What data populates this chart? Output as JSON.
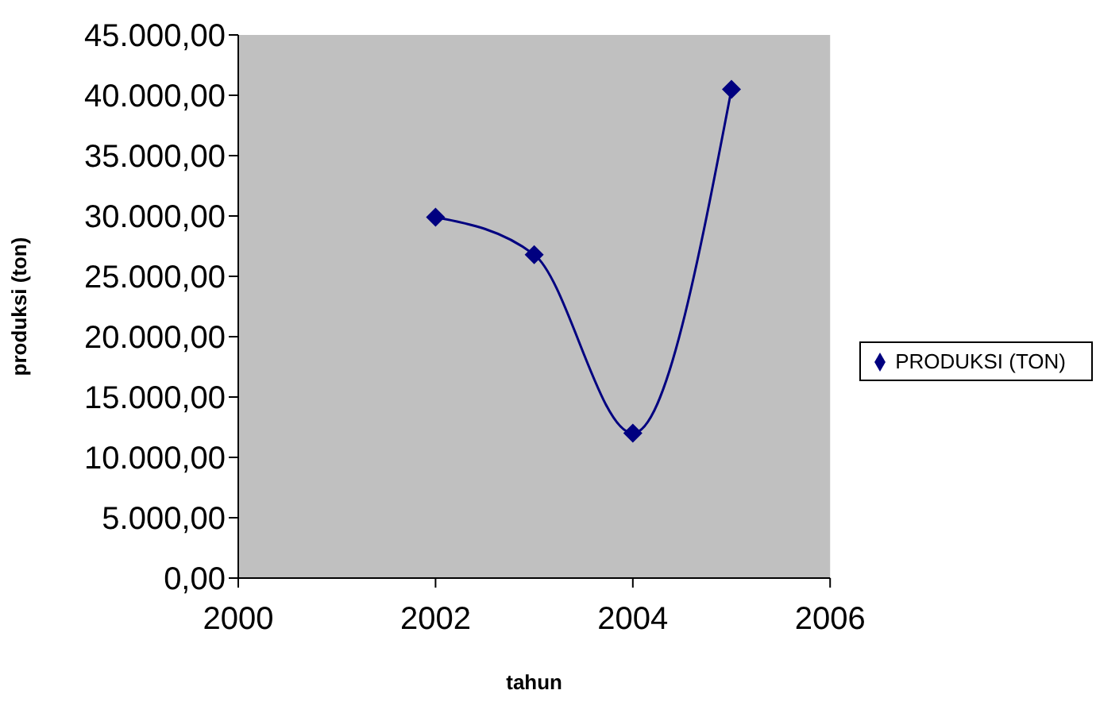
{
  "chart_data": {
    "type": "line",
    "xlabel": "tahun",
    "ylabel": "produksi (ton)",
    "x": [
      2002,
      2003,
      2004,
      2005
    ],
    "series": [
      {
        "name": "PRODUKSI (TON)",
        "color": "#000080",
        "values": [
          29900,
          26800,
          12000,
          40500
        ]
      }
    ],
    "xlim": [
      2000,
      2006
    ],
    "xticks": [
      2000,
      2002,
      2004,
      2006
    ],
    "ylim": [
      0,
      45000
    ],
    "yticks": [
      {
        "value": 0,
        "label": "0,00"
      },
      {
        "value": 5000,
        "label": "5.000,00"
      },
      {
        "value": 10000,
        "label": "10.000,00"
      },
      {
        "value": 15000,
        "label": "15.000,00"
      },
      {
        "value": 20000,
        "label": "20.000,00"
      },
      {
        "value": 25000,
        "label": "25.000,00"
      },
      {
        "value": 30000,
        "label": "30.000,00"
      },
      {
        "value": 35000,
        "label": "35.000,00"
      },
      {
        "value": 40000,
        "label": "40.000,00"
      },
      {
        "value": 45000,
        "label": "45.000,00"
      }
    ],
    "grid": false,
    "legend": "right",
    "marker": "diamond",
    "line_style": "solid"
  }
}
